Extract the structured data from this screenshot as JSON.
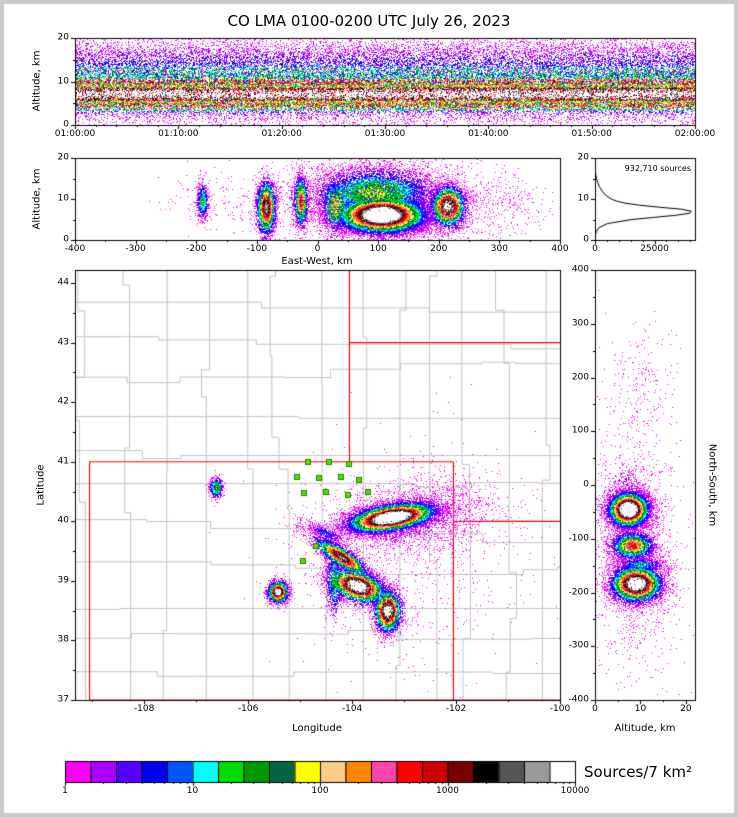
{
  "title": "CO LMA 0100-0200 UTC July 26, 2023",
  "colorbar": {
    "label": "Sources/7 km²",
    "tick_labels": [
      "1",
      "10",
      "100",
      "1000",
      "10000"
    ],
    "colors": [
      "#ff00ff",
      "#aa00ff",
      "#5500ff",
      "#0000ee",
      "#0055ff",
      "#00ffff",
      "#00dd00",
      "#009900",
      "#006644",
      "#ffff00",
      "#ffcc88",
      "#ff8800",
      "#ff44aa",
      "#ff0000",
      "#cc0000",
      "#770000",
      "#000000",
      "#555555",
      "#999999",
      "#ffffff"
    ]
  },
  "chart_data": [
    {
      "id": "time_height",
      "type": "scatter",
      "ylabel": "Altitude, km",
      "xlim": [
        0,
        3600
      ],
      "ylim": [
        0,
        20
      ],
      "xticks": [
        {
          "value": 0,
          "label": "01:00:00"
        },
        {
          "value": 600,
          "label": "01:10:00"
        },
        {
          "value": 1200,
          "label": "01:20:00"
        },
        {
          "value": 1800,
          "label": "01:30:00"
        },
        {
          "value": 2400,
          "label": "01:40:00"
        },
        {
          "value": 3000,
          "label": "01:50:00"
        },
        {
          "value": 3600,
          "label": "02:00:00"
        }
      ],
      "xminor_step": 120,
      "yticks": [
        {
          "value": 0,
          "label": "0"
        },
        {
          "value": 10,
          "label": "10"
        },
        {
          "value": 20,
          "label": "20"
        }
      ],
      "yminor": [
        5,
        15
      ],
      "striping": true,
      "clusters": [
        {
          "xdist": "uniform",
          "x0": 0,
          "x1": 3600,
          "cy": 7.2,
          "sy": 1.5,
          "peak": 1.0,
          "n": 24000
        },
        {
          "xdist": "uniform",
          "x0": 0,
          "x1": 3600,
          "cy": 9.9,
          "sy": 1.2,
          "peak": 0.6,
          "n": 9000
        },
        {
          "xdist": "uniform",
          "x0": 0,
          "x1": 3600,
          "cy": 4.7,
          "sy": 1.1,
          "peak": 0.58,
          "n": 8000
        },
        {
          "xdist": "uniform",
          "x0": 0,
          "x1": 3600,
          "cy": 12.3,
          "sy": 1.6,
          "peak": 0.33,
          "n": 6500
        },
        {
          "xdist": "uniform",
          "x0": 0,
          "x1": 3600,
          "cy": 14.9,
          "sy": 1.7,
          "peak": 0.17,
          "n": 4500
        },
        {
          "xdist": "uniform",
          "x0": 0,
          "x1": 3600,
          "cy": 17.6,
          "sy": 1.7,
          "peak": 0.07,
          "n": 2800
        },
        {
          "xdist": "uniform",
          "x0": 0,
          "x1": 3600,
          "cy": 1.8,
          "sy": 1.4,
          "peak": 0.07,
          "n": 1600
        },
        {
          "xdist": "uniform",
          "x0": 0,
          "x1": 3600,
          "cy": 9.0,
          "sy": 5.5,
          "peak": 0.035,
          "n": 2200
        }
      ]
    },
    {
      "id": "east_west",
      "type": "scatter",
      "xlabel": "East-West, km",
      "ylabel": "Altitude, km",
      "xlim": [
        -400,
        400
      ],
      "ylim": [
        0,
        20
      ],
      "xticks": [
        {
          "value": -400,
          "label": "-400"
        },
        {
          "value": -300,
          "label": "-300"
        },
        {
          "value": -200,
          "label": "-200"
        },
        {
          "value": -100,
          "label": "-100"
        },
        {
          "value": 0,
          "label": "0"
        },
        {
          "value": 100,
          "label": "100"
        },
        {
          "value": 200,
          "label": "200"
        },
        {
          "value": 300,
          "label": "300"
        },
        {
          "value": 400,
          "label": "400"
        }
      ],
      "xminor": [
        -350,
        -250,
        -150,
        -50,
        50,
        150,
        250,
        350
      ],
      "yticks": [
        {
          "value": 0,
          "label": "0"
        },
        {
          "value": 10,
          "label": "10"
        },
        {
          "value": 20,
          "label": "20"
        }
      ],
      "yminor": [
        5,
        15
      ],
      "clusters": [
        {
          "cx": -190,
          "cy": 9.5,
          "sx": 5,
          "sy": 2.3,
          "peak": 0.3,
          "n": 700
        },
        {
          "cx": -85,
          "cy": 8,
          "sx": 8,
          "sy": 3.3,
          "peak": 0.72,
          "n": 3200
        },
        {
          "cx": -28,
          "cy": 9.5,
          "sx": 6,
          "sy": 3.2,
          "peak": 0.55,
          "n": 1800
        },
        {
          "cx": 105,
          "cy": 6.2,
          "sx": 36,
          "sy": 2.2,
          "peak": 1.0,
          "n": 21000
        },
        {
          "cx": 95,
          "cy": 11.5,
          "sx": 52,
          "sy": 3.2,
          "peak": 0.38,
          "n": 7000
        },
        {
          "cx": 120,
          "cy": 9.5,
          "sx": 80,
          "sy": 5.5,
          "peak": 0.07,
          "n": 2600
        },
        {
          "cx": 215,
          "cy": 8.3,
          "sx": 15,
          "sy": 2.6,
          "peak": 0.78,
          "n": 3600
        },
        {
          "cx": 30,
          "cy": 8.5,
          "sx": 13,
          "sy": 3.5,
          "peak": 0.45,
          "n": 1500
        },
        {
          "cx": 300,
          "cy": 9,
          "sx": 38,
          "sy": 4,
          "peak": 0.04,
          "n": 260
        },
        {
          "cx": -150,
          "cy": 9,
          "sx": 55,
          "sy": 4,
          "peak": 0.03,
          "n": 160
        }
      ]
    },
    {
      "id": "histogram",
      "type": "line",
      "annotation": "932,710 sources",
      "xlim": [
        0,
        42000
      ],
      "ylim": [
        0,
        20
      ],
      "xticks": [
        {
          "value": 0,
          "label": "0"
        },
        {
          "value": 25000,
          "label": "25000"
        }
      ],
      "xminor": [
        5000,
        10000,
        15000,
        20000,
        30000,
        35000,
        40000
      ],
      "yticks": [
        {
          "value": 0,
          "label": "0"
        },
        {
          "value": 10,
          "label": "10"
        },
        {
          "value": 20,
          "label": "20"
        }
      ],
      "yminor": [
        5,
        15
      ],
      "profile": [
        [
          0,
          0
        ],
        [
          1,
          150
        ],
        [
          2,
          500
        ],
        [
          3,
          1600
        ],
        [
          4,
          5200
        ],
        [
          5,
          15500
        ],
        [
          5.5,
          24500
        ],
        [
          6,
          33500
        ],
        [
          6.5,
          39500
        ],
        [
          7,
          40500
        ],
        [
          7.5,
          36500
        ],
        [
          8,
          27000
        ],
        [
          8.5,
          18500
        ],
        [
          9,
          12500
        ],
        [
          9.5,
          9000
        ],
        [
          10,
          6800
        ],
        [
          11,
          4300
        ],
        [
          12,
          2900
        ],
        [
          13,
          1900
        ],
        [
          14,
          1150
        ],
        [
          15,
          640
        ],
        [
          16,
          320
        ],
        [
          17,
          140
        ],
        [
          18,
          60
        ],
        [
          19,
          18
        ],
        [
          20,
          4
        ]
      ]
    },
    {
      "id": "map",
      "type": "scatter",
      "xlabel": "Longitude",
      "ylabel": "Latitude",
      "xlim": [
        -109.33,
        -100.0
      ],
      "ylim": [
        37.0,
        44.22
      ],
      "xticks": [
        {
          "value": -108,
          "label": "-108"
        },
        {
          "value": -106,
          "label": "-106"
        },
        {
          "value": -104,
          "label": "-104"
        },
        {
          "value": -102,
          "label": "-102"
        },
        {
          "value": -100,
          "label": "-100"
        }
      ],
      "xminor": [
        -109,
        -107,
        -105,
        -103,
        -101
      ],
      "yticks": [
        {
          "value": 37,
          "label": "37"
        },
        {
          "value": 38,
          "label": "38"
        },
        {
          "value": 39,
          "label": "39"
        },
        {
          "value": 40,
          "label": "40"
        },
        {
          "value": 41,
          "label": "41"
        },
        {
          "value": 42,
          "label": "42"
        },
        {
          "value": 43,
          "label": "43"
        },
        {
          "value": 44,
          "label": "44"
        }
      ],
      "yminor": [
        37.5,
        38.5,
        39.5,
        40.5,
        41.5,
        42.5,
        43.5
      ],
      "border_color": "#ff0000",
      "county_color": "#c3c3c3",
      "station_color": "#55dd00",
      "state_borders": [
        [
          [
            -109.05,
            37
          ],
          [
            -109.05,
            41
          ]
        ],
        [
          [
            -109.05,
            41
          ],
          [
            -102.05,
            41
          ]
        ],
        [
          [
            -102.05,
            37
          ],
          [
            -102.05,
            41
          ]
        ],
        [
          [
            -109.05,
            37
          ],
          [
            -100.0,
            37
          ]
        ],
        [
          [
            -104.05,
            41
          ],
          [
            -104.05,
            44.22
          ]
        ],
        [
          [
            -104.05,
            43
          ],
          [
            -100.0,
            43
          ]
        ],
        [
          [
            -102.05,
            40
          ],
          [
            -100.0,
            40
          ]
        ]
      ],
      "stations": [
        [
          -104.85,
          40.99
        ],
        [
          -104.45,
          41.0
        ],
        [
          -104.06,
          40.97
        ],
        [
          -105.05,
          40.75
        ],
        [
          -104.63,
          40.72
        ],
        [
          -104.22,
          40.74
        ],
        [
          -103.86,
          40.69
        ],
        [
          -104.92,
          40.48
        ],
        [
          -104.5,
          40.5
        ],
        [
          -104.08,
          40.44
        ],
        [
          -103.7,
          40.5
        ],
        [
          -104.7,
          39.58
        ],
        [
          -104.95,
          39.33
        ]
      ],
      "clusters": [
        {
          "cx": -103.25,
          "cy": 40.07,
          "sx": 0.42,
          "sy": 0.11,
          "rot": 8,
          "peak": 1.0,
          "n": 14000
        },
        {
          "cx": -102.9,
          "cy": 40.05,
          "sx": 0.75,
          "sy": 0.3,
          "rot": 8,
          "peak": 0.09,
          "n": 2200
        },
        {
          "cx": -106.62,
          "cy": 40.57,
          "sx": 0.07,
          "sy": 0.09,
          "rot": 0,
          "peak": 0.35,
          "n": 600
        },
        {
          "cx": -104.2,
          "cy": 39.4,
          "sx": 0.3,
          "sy": 0.08,
          "rot": -30,
          "peak": 0.7,
          "n": 3000
        },
        {
          "cx": -104.5,
          "cy": 39.8,
          "sx": 0.2,
          "sy": 0.05,
          "rot": -20,
          "peak": 0.18,
          "n": 450
        },
        {
          "cx": -105.43,
          "cy": 38.82,
          "sx": 0.1,
          "sy": 0.09,
          "rot": 0,
          "peak": 0.85,
          "n": 2200
        },
        {
          "cx": -103.9,
          "cy": 38.92,
          "sx": 0.28,
          "sy": 0.13,
          "rot": -15,
          "peak": 0.9,
          "n": 5000
        },
        {
          "cx": -104.35,
          "cy": 39.0,
          "sx": 0.09,
          "sy": 0.3,
          "rot": 0,
          "peak": 0.3,
          "n": 900
        },
        {
          "cx": -103.32,
          "cy": 38.5,
          "sx": 0.13,
          "sy": 0.18,
          "rot": 0,
          "peak": 0.85,
          "n": 3500
        },
        {
          "cx": -102.9,
          "cy": 39.2,
          "sx": 1.1,
          "sy": 1.0,
          "rot": 0,
          "peak": 0.035,
          "n": 600
        },
        {
          "cx": -101.9,
          "cy": 40.2,
          "sx": 0.6,
          "sy": 0.5,
          "rot": 0,
          "peak": 0.04,
          "n": 250
        },
        {
          "cx": -105.0,
          "cy": 39.95,
          "sx": 0.15,
          "sy": 0.1,
          "rot": 0,
          "peak": 0.07,
          "n": 80
        }
      ]
    },
    {
      "id": "north_south",
      "type": "scatter",
      "xlabel": "Altitude, km",
      "ylabel": "North-South, km",
      "xlim": [
        0,
        22
      ],
      "ylim": [
        -400,
        400
      ],
      "xticks": [
        {
          "value": 0,
          "label": "0"
        },
        {
          "value": 10,
          "label": "10"
        },
        {
          "value": 20,
          "label": "20"
        }
      ],
      "xminor": [
        5,
        15
      ],
      "yticks": [
        {
          "value": 400,
          "label": "400"
        },
        {
          "value": 300,
          "label": "300"
        },
        {
          "value": 200,
          "label": "200"
        },
        {
          "value": 100,
          "label": "100"
        },
        {
          "value": 0,
          "label": "0"
        },
        {
          "value": -100,
          "label": "-100"
        },
        {
          "value": -200,
          "label": "-200"
        },
        {
          "value": -300,
          "label": "-300"
        },
        {
          "value": -400,
          "label": "-400"
        }
      ],
      "yminor": [
        -350,
        -250,
        -150,
        -50,
        50,
        150,
        250,
        350
      ],
      "clusters": [
        {
          "cx": 7.3,
          "cy": -45,
          "sx": 2.2,
          "sy": 16,
          "peak": 1.0,
          "n": 11000
        },
        {
          "cx": 8.2,
          "cy": -112,
          "sx": 2.4,
          "sy": 13,
          "peak": 0.55,
          "n": 3000
        },
        {
          "cx": 9.0,
          "cy": -183,
          "sx": 2.8,
          "sy": 17,
          "peak": 0.9,
          "n": 8000
        },
        {
          "cx": 10,
          "cy": -148,
          "sx": 3,
          "sy": 8,
          "peak": 0.25,
          "n": 800
        },
        {
          "cx": 9,
          "cy": -130,
          "sx": 4.5,
          "sy": 110,
          "peak": 0.04,
          "n": 1500
        },
        {
          "cx": 10,
          "cy": 180,
          "sx": 4,
          "sy": 60,
          "peak": 0.035,
          "n": 220
        },
        {
          "cx": 6.5,
          "cy": 10,
          "sx": 2,
          "sy": 18,
          "peak": 0.12,
          "n": 140
        }
      ]
    }
  ]
}
